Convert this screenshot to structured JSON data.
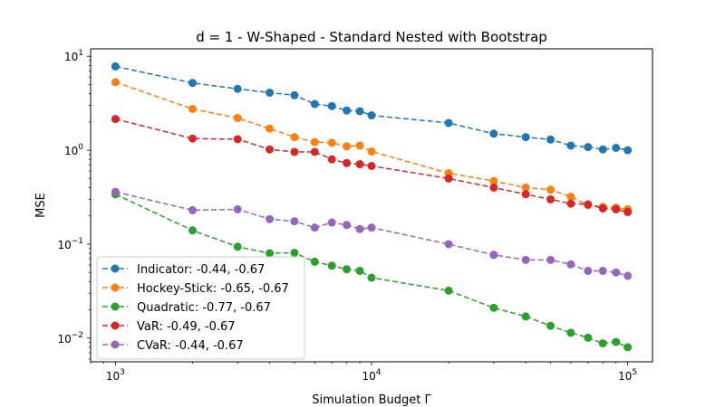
{
  "chart_data": {
    "type": "line",
    "title": "d = 1 - W-Shaped - Standard Nested with Bootstrap",
    "xlabel": "Simulation Budget Γ",
    "ylabel": "MSE",
    "xscale": "log",
    "yscale": "log",
    "xlim": [
      800,
      125000
    ],
    "ylim": [
      0.0056,
      12
    ],
    "x_ticks": [
      {
        "value": 1000,
        "base": "10",
        "exp": "3"
      },
      {
        "value": 10000,
        "base": "10",
        "exp": "4"
      },
      {
        "value": 100000,
        "base": "10",
        "exp": "5"
      }
    ],
    "y_ticks": [
      {
        "value": 0.01,
        "base": "10",
        "exp": "−2"
      },
      {
        "value": 0.1,
        "base": "10",
        "exp": "−1"
      },
      {
        "value": 1,
        "base": "10",
        "exp": "0"
      },
      {
        "value": 10,
        "base": "10",
        "exp": "1"
      }
    ],
    "legend_position": "lower-left",
    "line_style": "dashed",
    "markers": "circle",
    "x": [
      1000,
      2000,
      3000,
      4000,
      5000,
      6000,
      7000,
      8000,
      9000,
      10000,
      20000,
      30000,
      40000,
      50000,
      60000,
      70000,
      80000,
      90000,
      100000
    ],
    "series": [
      {
        "name": "Indicator: -0.44, -0.67",
        "color": "#1f77b4",
        "values": [
          7.8,
          5.2,
          4.5,
          4.1,
          3.85,
          3.1,
          2.95,
          2.65,
          2.6,
          2.35,
          1.95,
          1.5,
          1.38,
          1.3,
          1.12,
          1.08,
          1.02,
          1.06,
          1.0
        ]
      },
      {
        "name": "Hockey-Stick: -0.65, -0.67",
        "color": "#ff7f0e",
        "values": [
          5.3,
          2.75,
          2.2,
          1.7,
          1.38,
          1.22,
          1.2,
          1.1,
          1.12,
          0.97,
          0.57,
          0.47,
          0.4,
          0.38,
          0.32,
          0.26,
          0.25,
          0.245,
          0.235
        ]
      },
      {
        "name": "Quadratic: -0.77, -0.67",
        "color": "#2ca02c",
        "values": [
          0.34,
          0.14,
          0.094,
          0.08,
          0.081,
          0.065,
          0.059,
          0.054,
          0.052,
          0.044,
          0.032,
          0.021,
          0.017,
          0.0135,
          0.0114,
          0.0101,
          0.0088,
          0.0091,
          0.008
        ]
      },
      {
        "name": "VaR: -0.49, -0.67",
        "color": "#d62728",
        "values": [
          2.15,
          1.33,
          1.31,
          1.02,
          0.96,
          0.96,
          0.8,
          0.73,
          0.71,
          0.68,
          0.5,
          0.4,
          0.34,
          0.3,
          0.27,
          0.265,
          0.24,
          0.235,
          0.22
        ]
      },
      {
        "name": "CVaR: -0.44, -0.67",
        "color": "#9467bd",
        "values": [
          0.36,
          0.23,
          0.235,
          0.185,
          0.175,
          0.15,
          0.17,
          0.16,
          0.145,
          0.15,
          0.1,
          0.077,
          0.068,
          0.068,
          0.061,
          0.052,
          0.052,
          0.05,
          0.046
        ]
      }
    ]
  }
}
